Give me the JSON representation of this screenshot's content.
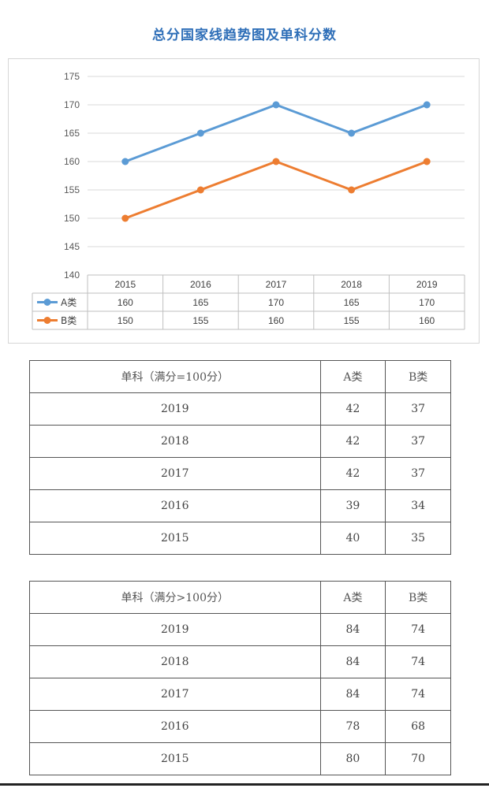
{
  "page": {
    "title": "总分国家线趋势图及单科分数"
  },
  "chart_data": {
    "type": "line",
    "title": "总分国家线趋势图及单科分数",
    "categories": [
      "2015",
      "2016",
      "2017",
      "2018",
      "2019"
    ],
    "series": [
      {
        "name": "A类",
        "values": [
          160,
          165,
          170,
          165,
          170
        ],
        "color": "#5b9bd5"
      },
      {
        "name": "B类",
        "values": [
          150,
          155,
          160,
          155,
          160
        ],
        "color": "#ed7d31"
      }
    ],
    "ylim": [
      140,
      175
    ],
    "yticks": [
      140,
      145,
      150,
      155,
      160,
      165,
      170,
      175
    ],
    "grid": true,
    "legend": "data-table-below"
  },
  "tables": [
    {
      "header": {
        "subject": "单科（满分=100分）",
        "a": "A类",
        "b": "B类"
      },
      "rows": [
        {
          "year": "2019",
          "a": "42",
          "b": "37"
        },
        {
          "year": "2018",
          "a": "42",
          "b": "37"
        },
        {
          "year": "2017",
          "a": "42",
          "b": "37"
        },
        {
          "year": "2016",
          "a": "39",
          "b": "34"
        },
        {
          "year": "2015",
          "a": "40",
          "b": "35"
        }
      ]
    },
    {
      "header": {
        "subject": "单科（满分>100分）",
        "a": "A类",
        "b": "B类"
      },
      "rows": [
        {
          "year": "2019",
          "a": "84",
          "b": "74"
        },
        {
          "year": "2018",
          "a": "84",
          "b": "74"
        },
        {
          "year": "2017",
          "a": "84",
          "b": "74"
        },
        {
          "year": "2016",
          "a": "78",
          "b": "68"
        },
        {
          "year": "2015",
          "a": "80",
          "b": "70"
        }
      ]
    }
  ]
}
